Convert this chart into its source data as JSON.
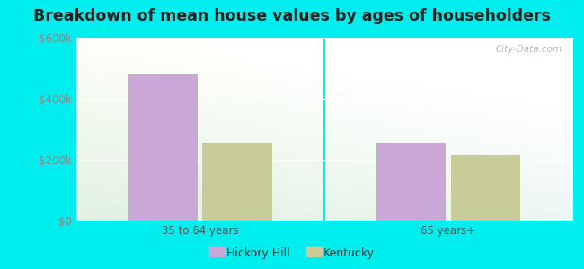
{
  "title": "Breakdown of mean house values by ages of householders",
  "categories": [
    "35 to 64 years",
    "65 years+"
  ],
  "series": {
    "Hickory Hill": [
      480000,
      255000
    ],
    "Kentucky": [
      255000,
      215000
    ]
  },
  "bar_colors": {
    "Hickory Hill": "#c9a8d8",
    "Kentucky": "#c8cc98"
  },
  "ylim": [
    0,
    600000
  ],
  "yticks": [
    0,
    200000,
    400000,
    600000
  ],
  "ytick_labels": [
    "$0",
    "$200k",
    "$400k",
    "$600k"
  ],
  "outer_background": "#00eeee",
  "title_fontsize": 12.5,
  "legend_entries": [
    "Hickory Hill",
    "Kentucky"
  ],
  "watermark": "City-Data.com",
  "bar_width": 0.28
}
